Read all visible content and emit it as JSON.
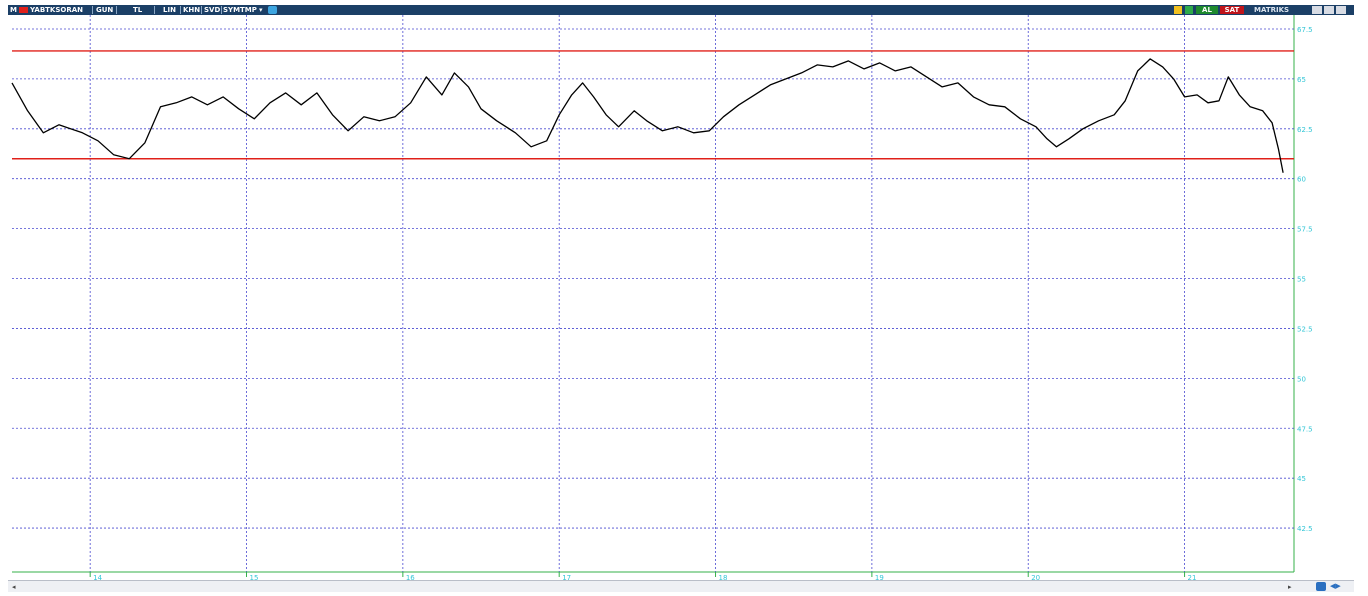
{
  "toolbar": {
    "m_label": "M",
    "symbol": "YABTKSORAN",
    "period": "GUN",
    "currency": "TL",
    "scale": "LIN",
    "btn_khn": "KHN",
    "btn_svd": "SVD",
    "btn_sym": "SYM",
    "btn_tmp": "TMP",
    "buy_label": "AL",
    "sell_label": "SAT",
    "brand": "MATRIKS",
    "colors": {
      "bar": "#1b3f66",
      "buy": "#1e8a2e",
      "sell": "#c0141a"
    }
  },
  "chart_data": {
    "type": "line",
    "title": "",
    "xlabel": "",
    "ylabel": "",
    "x_ticks": [
      "14",
      "15",
      "16",
      "17",
      "18",
      "19",
      "20",
      "21"
    ],
    "y_ticks": [
      "67.5",
      "65",
      "62.5",
      "60",
      "57.5",
      "55",
      "52.5",
      "50",
      "47.5",
      "45",
      "42.5"
    ],
    "ylim": [
      40.3,
      68.2
    ],
    "xlim": [
      13.5,
      21.7
    ],
    "grid": true,
    "series": [
      {
        "color": "#000000",
        "points": [
          [
            13.5,
            64.8
          ],
          [
            13.6,
            63.4
          ],
          [
            13.7,
            62.3
          ],
          [
            13.8,
            62.7
          ],
          [
            13.95,
            62.3
          ],
          [
            14.05,
            61.9
          ],
          [
            14.15,
            61.2
          ],
          [
            14.25,
            61.0
          ],
          [
            14.35,
            61.8
          ],
          [
            14.45,
            63.6
          ],
          [
            14.55,
            63.8
          ],
          [
            14.65,
            64.1
          ],
          [
            14.75,
            63.7
          ],
          [
            14.85,
            64.1
          ],
          [
            14.95,
            63.5
          ],
          [
            15.05,
            63.0
          ],
          [
            15.15,
            63.8
          ],
          [
            15.25,
            64.3
          ],
          [
            15.35,
            63.7
          ],
          [
            15.45,
            64.3
          ],
          [
            15.55,
            63.2
          ],
          [
            15.65,
            62.4
          ],
          [
            15.75,
            63.1
          ],
          [
            15.85,
            62.9
          ],
          [
            15.95,
            63.1
          ],
          [
            16.05,
            63.8
          ],
          [
            16.15,
            65.1
          ],
          [
            16.25,
            64.2
          ],
          [
            16.33,
            65.3
          ],
          [
            16.42,
            64.6
          ],
          [
            16.5,
            63.5
          ],
          [
            16.6,
            62.9
          ],
          [
            16.72,
            62.3
          ],
          [
            16.82,
            61.6
          ],
          [
            16.92,
            61.9
          ],
          [
            17.0,
            63.2
          ],
          [
            17.08,
            64.2
          ],
          [
            17.15,
            64.8
          ],
          [
            17.22,
            64.1
          ],
          [
            17.3,
            63.2
          ],
          [
            17.38,
            62.6
          ],
          [
            17.48,
            63.4
          ],
          [
            17.56,
            62.9
          ],
          [
            17.66,
            62.4
          ],
          [
            17.76,
            62.6
          ],
          [
            17.86,
            62.3
          ],
          [
            17.96,
            62.4
          ],
          [
            18.05,
            63.1
          ],
          [
            18.15,
            63.7
          ],
          [
            18.25,
            64.2
          ],
          [
            18.35,
            64.7
          ],
          [
            18.45,
            65.0
          ],
          [
            18.55,
            65.3
          ],
          [
            18.65,
            65.7
          ],
          [
            18.75,
            65.6
          ],
          [
            18.85,
            65.9
          ],
          [
            18.95,
            65.5
          ],
          [
            19.05,
            65.8
          ],
          [
            19.15,
            65.4
          ],
          [
            19.25,
            65.6
          ],
          [
            19.35,
            65.1
          ],
          [
            19.45,
            64.6
          ],
          [
            19.55,
            64.8
          ],
          [
            19.65,
            64.1
          ],
          [
            19.75,
            63.7
          ],
          [
            19.85,
            63.6
          ],
          [
            19.95,
            63.0
          ],
          [
            20.05,
            62.6
          ],
          [
            20.12,
            62.0
          ],
          [
            20.18,
            61.6
          ],
          [
            20.26,
            62.0
          ],
          [
            20.35,
            62.5
          ],
          [
            20.45,
            62.9
          ],
          [
            20.55,
            63.2
          ],
          [
            20.62,
            63.9
          ],
          [
            20.7,
            65.4
          ],
          [
            20.78,
            66.0
          ],
          [
            20.86,
            65.6
          ],
          [
            20.93,
            65.0
          ],
          [
            21.0,
            64.1
          ],
          [
            21.08,
            64.2
          ],
          [
            21.15,
            63.8
          ],
          [
            21.22,
            63.9
          ],
          [
            21.28,
            65.1
          ],
          [
            21.35,
            64.2
          ],
          [
            21.42,
            63.6
          ],
          [
            21.5,
            63.4
          ],
          [
            21.56,
            62.8
          ],
          [
            21.6,
            61.5
          ],
          [
            21.63,
            60.3
          ]
        ]
      }
    ],
    "reference_lines": [
      {
        "y": 66.4,
        "color": "#e0201a"
      },
      {
        "y": 61.0,
        "color": "#e0201a"
      }
    ]
  }
}
